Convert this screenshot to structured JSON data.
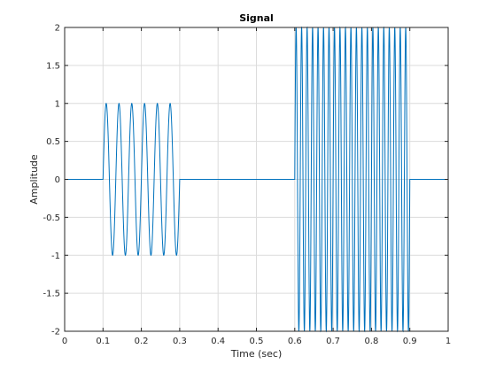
{
  "chart_data": {
    "type": "line",
    "title": "Signal",
    "xlabel": "Time (sec)",
    "ylabel": "Amplitude",
    "xlim": [
      0,
      1
    ],
    "ylim": [
      -2,
      2
    ],
    "grid": true,
    "x_ticks": [
      "0",
      "0.1",
      "0.2",
      "0.3",
      "0.4",
      "0.5",
      "0.6",
      "0.7",
      "0.8",
      "0.9",
      "1"
    ],
    "y_ticks": [
      "2",
      "1.5",
      "1",
      "0.5",
      "0",
      "-0.5",
      "-1",
      "-1.5",
      "-2"
    ],
    "series": [
      {
        "color": "#0072bd",
        "segments": [
          {
            "x_start": 0.1,
            "x_end": 0.3,
            "amplitude": 1,
            "frequency_hz": 30
          },
          {
            "x_start": 0.6,
            "x_end": 0.9,
            "amplitude": 2,
            "frequency_hz": 70
          }
        ]
      }
    ]
  }
}
